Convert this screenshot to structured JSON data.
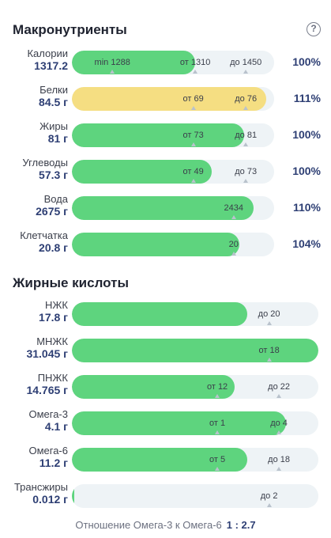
{
  "macros": {
    "title": "Макронутриенты",
    "help": "?",
    "rows": [
      {
        "name": "Калории",
        "value": "1317.2",
        "pct": "100%",
        "fill": 0.61,
        "color": "green",
        "marks": [
          {
            "text": "min 1288",
            "at": 0.2
          },
          {
            "text": "от 1310",
            "at": 0.61
          },
          {
            "text": "до 1450",
            "at": 0.86
          }
        ],
        "ticks": [
          0.2,
          0.61,
          0.86
        ]
      },
      {
        "name": "Белки",
        "value": "84.5 г",
        "pct": "111%",
        "fill": 0.96,
        "color": "yellow",
        "marks": [
          {
            "text": "от 69",
            "at": 0.6
          },
          {
            "text": "до 76",
            "at": 0.86
          }
        ],
        "ticks": [
          0.6,
          0.86
        ]
      },
      {
        "name": "Жиры",
        "value": "81 г",
        "pct": "100%",
        "fill": 0.85,
        "color": "green",
        "marks": [
          {
            "text": "от 73",
            "at": 0.6
          },
          {
            "text": "до 81",
            "at": 0.86
          }
        ],
        "ticks": [
          0.6,
          0.86
        ]
      },
      {
        "name": "Углеводы",
        "value": "57.3 г",
        "pct": "100%",
        "fill": 0.69,
        "color": "green",
        "marks": [
          {
            "text": "от 49",
            "at": 0.6
          },
          {
            "text": "до 73",
            "at": 0.86
          }
        ],
        "ticks": [
          0.6,
          0.86
        ]
      },
      {
        "name": "Вода",
        "value": "2675 г",
        "pct": "110%",
        "fill": 0.9,
        "color": "green",
        "marks": [
          {
            "text": "2434",
            "at": 0.8
          }
        ],
        "ticks": [
          0.8
        ]
      },
      {
        "name": "Клетчатка",
        "value": "20.8 г",
        "pct": "104%",
        "fill": 0.83,
        "color": "green",
        "marks": [
          {
            "text": "20",
            "at": 0.8
          }
        ],
        "ticks": [
          0.8
        ]
      }
    ]
  },
  "fats": {
    "title": "Жирные кислоты",
    "rows": [
      {
        "name": "НЖК",
        "value": "17.8 г",
        "fill": 0.71,
        "color": "green",
        "marks": [
          {
            "text": "до 20",
            "at": 0.8
          }
        ],
        "ticks": [
          0.8
        ]
      },
      {
        "name": "МНЖК",
        "value": "31.045 г",
        "fill": 1.0,
        "color": "green",
        "marks": [
          {
            "text": "от 18",
            "at": 0.8
          }
        ],
        "ticks": [
          0.8
        ]
      },
      {
        "name": "ПНЖК",
        "value": "14.765 г",
        "fill": 0.66,
        "color": "green",
        "marks": [
          {
            "text": "от 12",
            "at": 0.59
          },
          {
            "text": "до 22",
            "at": 0.84
          }
        ],
        "ticks": [
          0.59,
          0.84
        ]
      },
      {
        "name": "Омега-3",
        "value": "4.1 г",
        "fill": 0.87,
        "color": "green",
        "marks": [
          {
            "text": "от 1",
            "at": 0.59
          },
          {
            "text": "до 4",
            "at": 0.84
          }
        ],
        "ticks": [
          0.59,
          0.84
        ]
      },
      {
        "name": "Омега-6",
        "value": "11.2 г",
        "fill": 0.71,
        "color": "green",
        "marks": [
          {
            "text": "от 5",
            "at": 0.59
          },
          {
            "text": "до 18",
            "at": 0.84
          }
        ],
        "ticks": [
          0.59,
          0.84
        ]
      },
      {
        "name": "Трансжиры",
        "value": "0.012 г",
        "fill": 0.0,
        "color": "green",
        "marks": [
          {
            "text": "до 2",
            "at": 0.8
          }
        ],
        "ticks": [
          0.8
        ]
      }
    ]
  },
  "ratio": {
    "label": "Отношение Омега-3 к Омега-6",
    "value": "1 : 2.7"
  },
  "colors": {
    "green": "#5ed47e",
    "yellow": "#f5de82",
    "track": "#eef3f6",
    "accent": "#2e3f74"
  }
}
